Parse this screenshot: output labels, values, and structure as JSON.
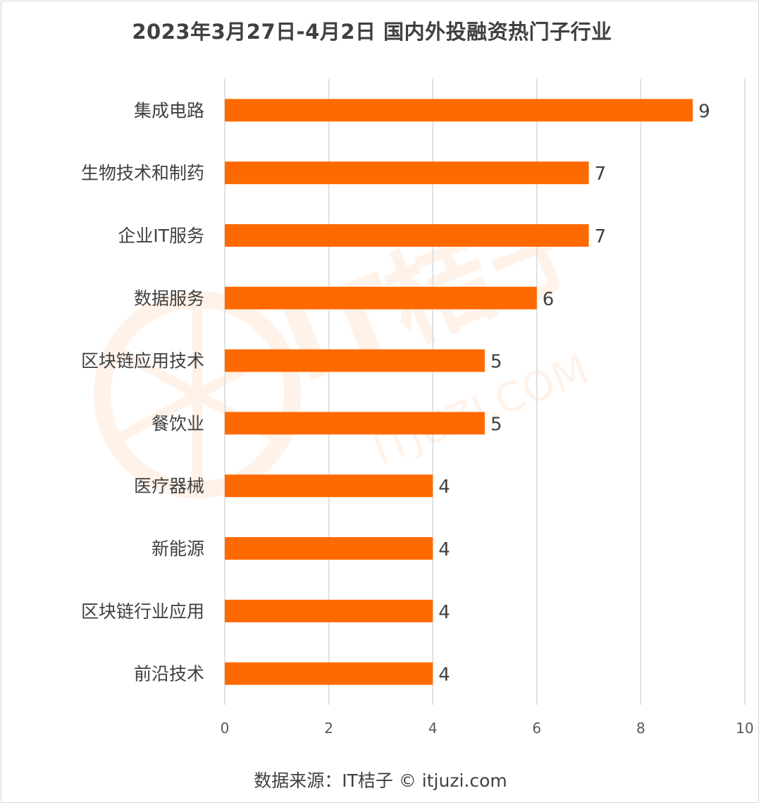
{
  "title": "2023年3月27日-4月2日 国内外投融资热门子行业",
  "source": "数据来源：IT桔子 © itjuzi.com",
  "watermark": {
    "main": "IT桔子",
    "sub": "ITJUZI.COM"
  },
  "colors": {
    "bar": "#ff6a00",
    "grid": "#d9d9d9",
    "text": "#404040",
    "axis_text": "#595959"
  },
  "chart_data": {
    "type": "bar",
    "orientation": "horizontal",
    "categories": [
      "集成电路",
      "生物技术和制药",
      "企业IT服务",
      "数据服务",
      "区块链应用技术",
      "餐饮业",
      "医疗器械",
      "新能源",
      "区块链行业应用",
      "前沿技术"
    ],
    "values": [
      9,
      7,
      7,
      6,
      5,
      5,
      4,
      4,
      4,
      4
    ],
    "xlim": [
      0,
      10
    ],
    "xticks": [
      0,
      2,
      4,
      6,
      8,
      10
    ],
    "grid": true,
    "data_labels": true
  }
}
